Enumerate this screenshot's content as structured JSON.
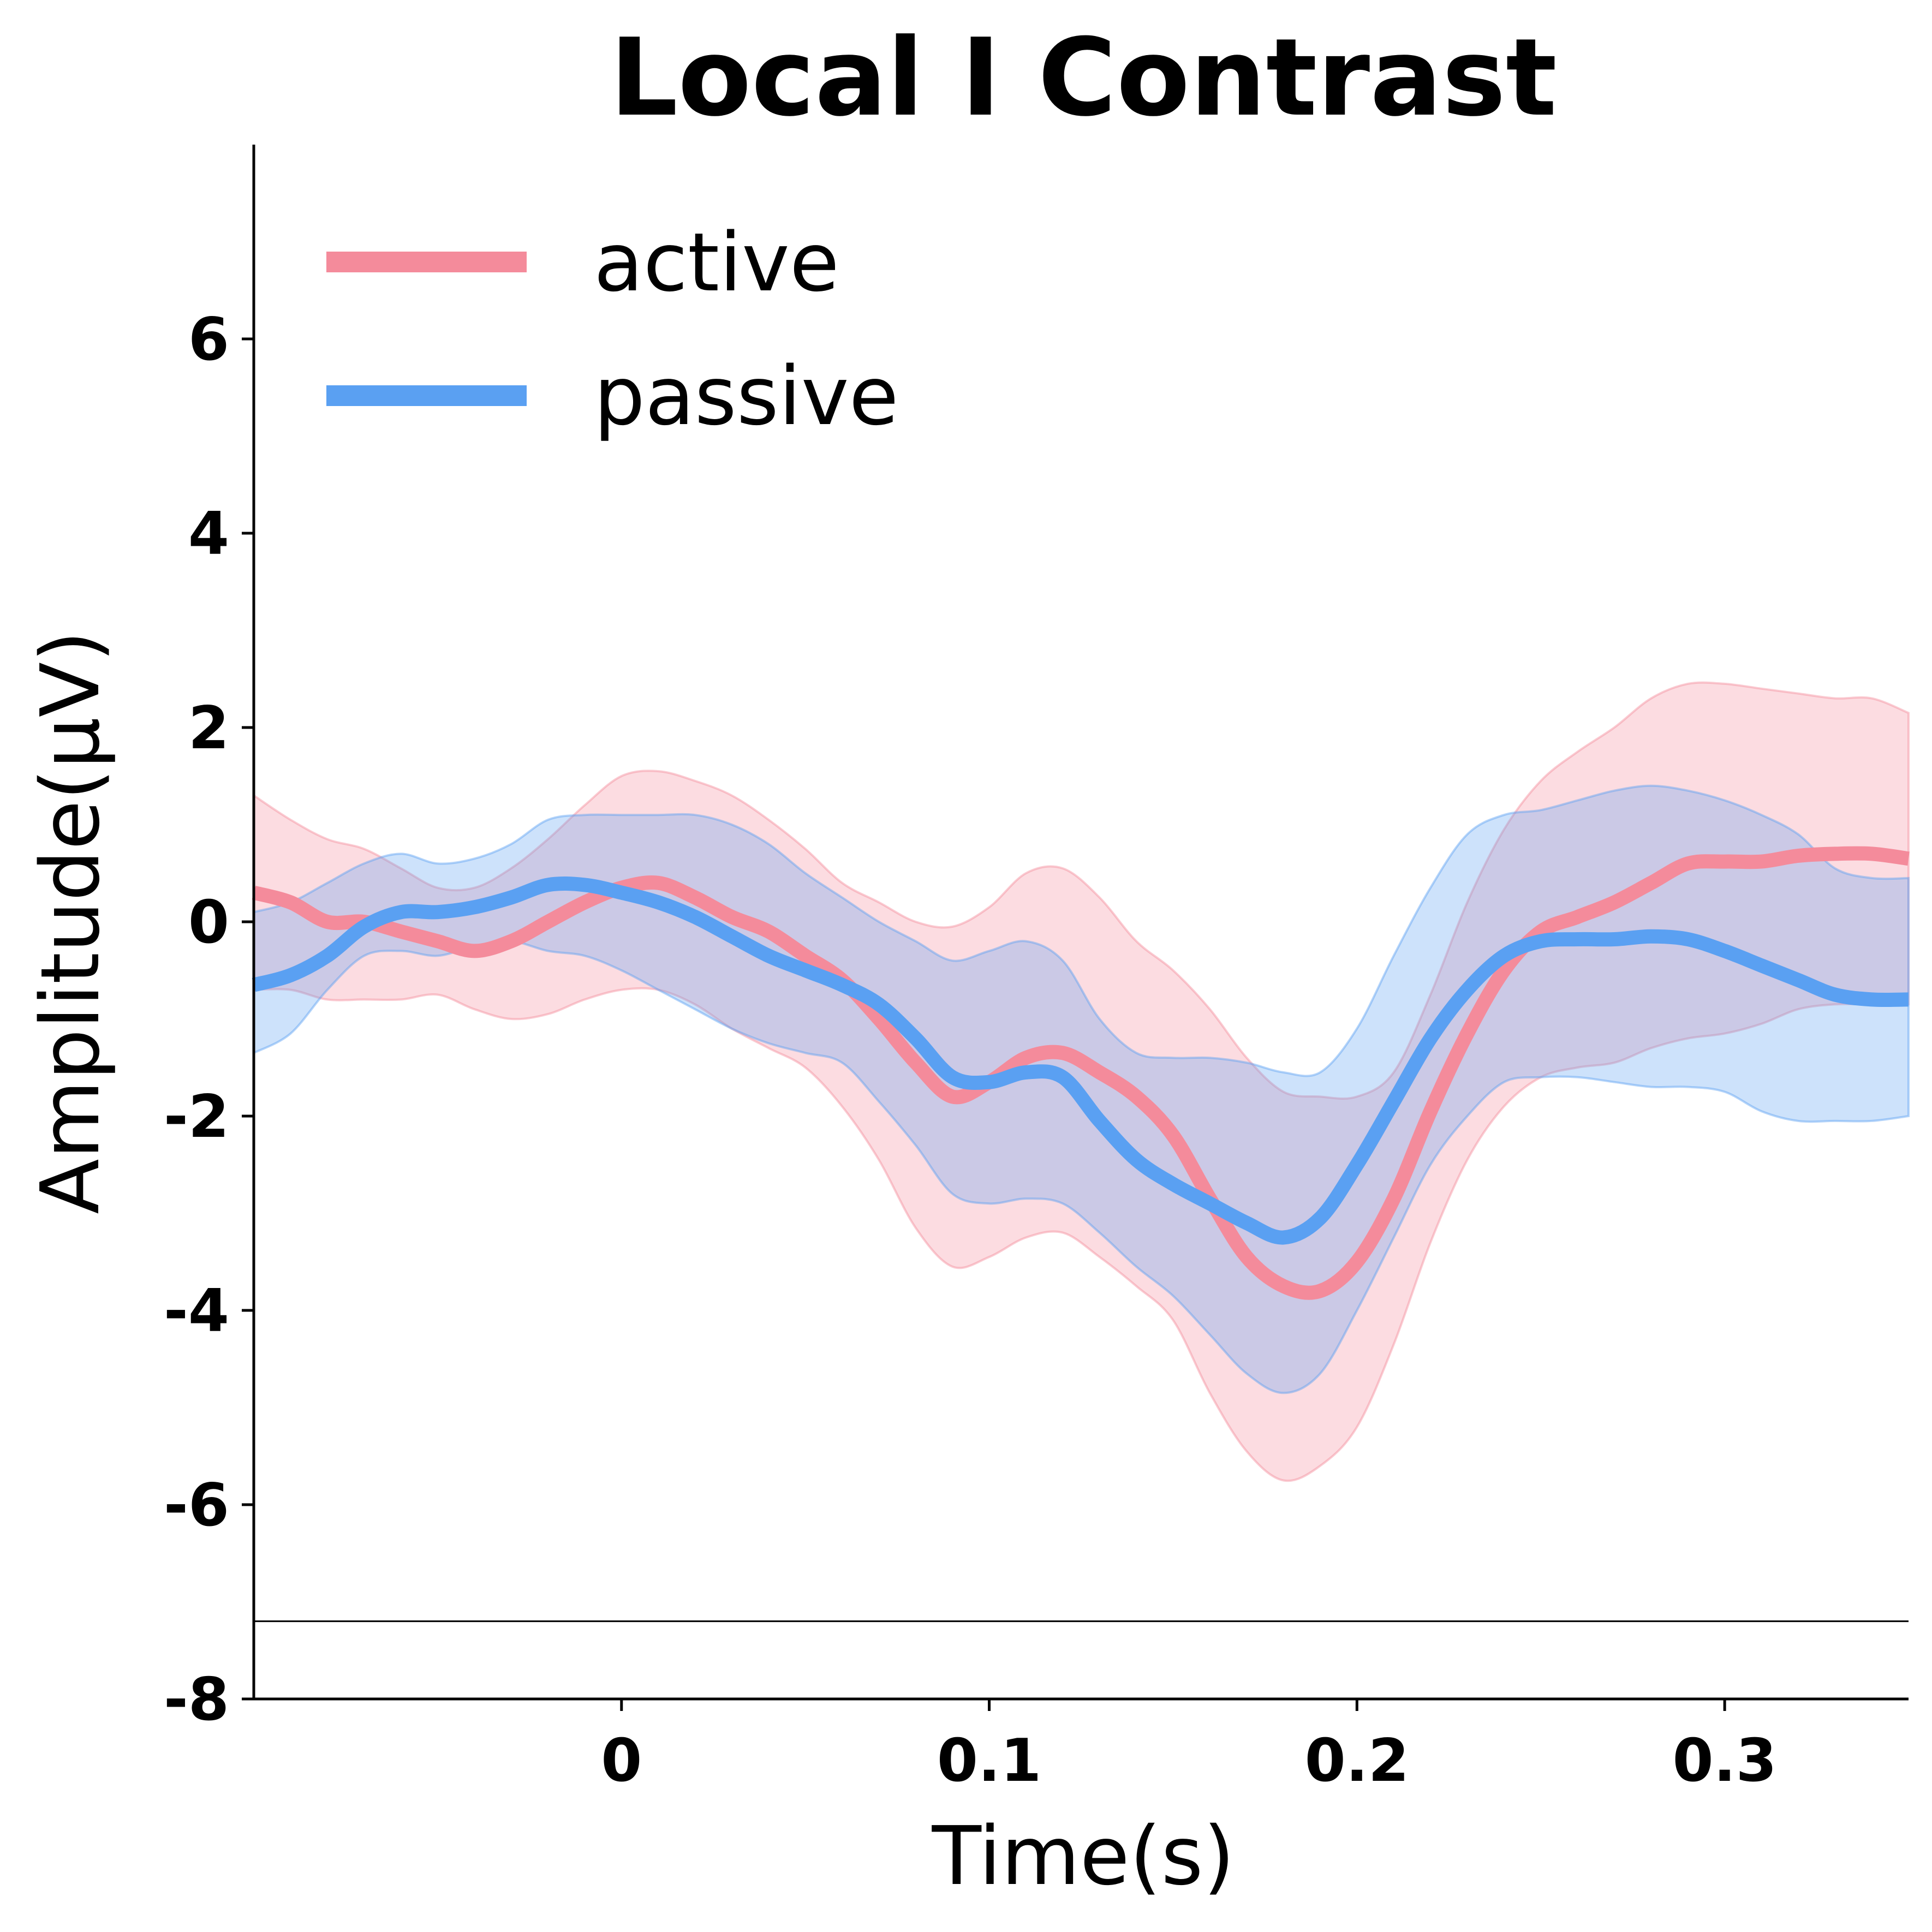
{
  "chart_data": {
    "type": "line",
    "title": "Local I Contrast",
    "xlabel": "Time(s)",
    "ylabel": "Amplitude(μV)",
    "xlim": [
      -0.1,
      0.35
    ],
    "ylim": [
      -8,
      8
    ],
    "xticks": [
      0,
      0.1,
      0.2,
      0.3
    ],
    "xtick_labels": [
      "0",
      "0.1",
      "0.2",
      "0.3"
    ],
    "yticks": [
      -8,
      -6,
      -4,
      -2,
      0,
      2,
      4,
      6
    ],
    "ytick_labels": [
      "-8",
      "-6",
      "-4",
      "-2",
      "0",
      "2",
      "4",
      "6"
    ],
    "reference_line_y": -7.2,
    "grid": false,
    "legend_position": "top-left",
    "x": [
      -0.1,
      -0.09,
      -0.08,
      -0.07,
      -0.06,
      -0.05,
      -0.04,
      -0.03,
      -0.02,
      -0.01,
      0.0,
      0.01,
      0.02,
      0.03,
      0.04,
      0.05,
      0.06,
      0.07,
      0.08,
      0.09,
      0.1,
      0.11,
      0.12,
      0.13,
      0.14,
      0.15,
      0.16,
      0.17,
      0.18,
      0.19,
      0.2,
      0.21,
      0.22,
      0.23,
      0.24,
      0.25,
      0.26,
      0.27,
      0.28,
      0.29,
      0.3,
      0.31,
      0.32,
      0.33,
      0.34,
      0.35
    ],
    "series": [
      {
        "name": "active",
        "color": "#f48b9b",
        "values": [
          0.3,
          0.2,
          0.0,
          0.0,
          -0.1,
          -0.2,
          -0.3,
          -0.2,
          0.0,
          0.2,
          0.35,
          0.4,
          0.25,
          0.05,
          -0.1,
          -0.35,
          -0.6,
          -1.0,
          -1.45,
          -1.8,
          -1.65,
          -1.4,
          -1.35,
          -1.55,
          -1.8,
          -2.2,
          -2.85,
          -3.45,
          -3.75,
          -3.8,
          -3.5,
          -2.85,
          -1.95,
          -1.15,
          -0.5,
          -0.1,
          0.05,
          0.2,
          0.4,
          0.6,
          0.62,
          0.62,
          0.68,
          0.7,
          0.7,
          0.65
        ],
        "upper": [
          1.3,
          1.05,
          0.85,
          0.75,
          0.55,
          0.35,
          0.35,
          0.55,
          0.85,
          1.2,
          1.5,
          1.55,
          1.45,
          1.3,
          1.05,
          0.75,
          0.4,
          0.2,
          0.0,
          -0.05,
          0.15,
          0.5,
          0.55,
          0.25,
          -0.2,
          -0.5,
          -0.9,
          -1.4,
          -1.75,
          -1.8,
          -1.8,
          -1.55,
          -0.75,
          0.2,
          0.95,
          1.45,
          1.75,
          2.0,
          2.3,
          2.45,
          2.45,
          2.4,
          2.35,
          2.3,
          2.3,
          2.15
        ],
        "lower": [
          -0.7,
          -0.7,
          -0.8,
          -0.8,
          -0.8,
          -0.75,
          -0.9,
          -1.0,
          -0.95,
          -0.8,
          -0.7,
          -0.7,
          -0.85,
          -1.1,
          -1.3,
          -1.5,
          -1.9,
          -2.45,
          -3.15,
          -3.55,
          -3.45,
          -3.25,
          -3.2,
          -3.45,
          -3.75,
          -4.1,
          -4.85,
          -5.45,
          -5.75,
          -5.6,
          -5.2,
          -4.35,
          -3.3,
          -2.45,
          -1.9,
          -1.6,
          -1.5,
          -1.45,
          -1.3,
          -1.2,
          -1.15,
          -1.05,
          -0.9,
          -0.85,
          -0.85,
          -0.85
        ]
      },
      {
        "name": "passive",
        "color": "#5aa0f2",
        "values": [
          -0.65,
          -0.55,
          -0.35,
          -0.05,
          0.1,
          0.1,
          0.15,
          0.25,
          0.38,
          0.38,
          0.3,
          0.2,
          0.05,
          -0.15,
          -0.35,
          -0.5,
          -0.65,
          -0.85,
          -1.2,
          -1.6,
          -1.65,
          -1.55,
          -1.6,
          -2.05,
          -2.45,
          -2.7,
          -2.9,
          -3.1,
          -3.25,
          -3.05,
          -2.5,
          -1.85,
          -1.2,
          -0.7,
          -0.35,
          -0.2,
          -0.18,
          -0.18,
          -0.15,
          -0.18,
          -0.3,
          -0.45,
          -0.6,
          -0.75,
          -0.8,
          -0.8
        ],
        "upper": [
          0.1,
          0.2,
          0.4,
          0.6,
          0.7,
          0.6,
          0.65,
          0.8,
          1.05,
          1.1,
          1.1,
          1.1,
          1.1,
          1.0,
          0.8,
          0.5,
          0.25,
          0.0,
          -0.2,
          -0.4,
          -0.3,
          -0.2,
          -0.4,
          -1.0,
          -1.35,
          -1.4,
          -1.4,
          -1.45,
          -1.55,
          -1.55,
          -1.1,
          -0.35,
          0.35,
          0.9,
          1.1,
          1.15,
          1.25,
          1.35,
          1.4,
          1.35,
          1.25,
          1.1,
          0.9,
          0.55,
          0.45,
          0.45
        ],
        "lower": [
          -1.35,
          -1.15,
          -0.7,
          -0.35,
          -0.3,
          -0.35,
          -0.25,
          -0.2,
          -0.3,
          -0.35,
          -0.5,
          -0.7,
          -0.9,
          -1.1,
          -1.25,
          -1.35,
          -1.45,
          -1.85,
          -2.3,
          -2.8,
          -2.9,
          -2.85,
          -2.9,
          -3.2,
          -3.55,
          -3.85,
          -4.25,
          -4.65,
          -4.85,
          -4.65,
          -4.0,
          -3.25,
          -2.5,
          -2.0,
          -1.65,
          -1.6,
          -1.6,
          -1.65,
          -1.7,
          -1.7,
          -1.75,
          -1.95,
          -2.05,
          -2.05,
          -2.05,
          -2.0
        ]
      }
    ]
  }
}
